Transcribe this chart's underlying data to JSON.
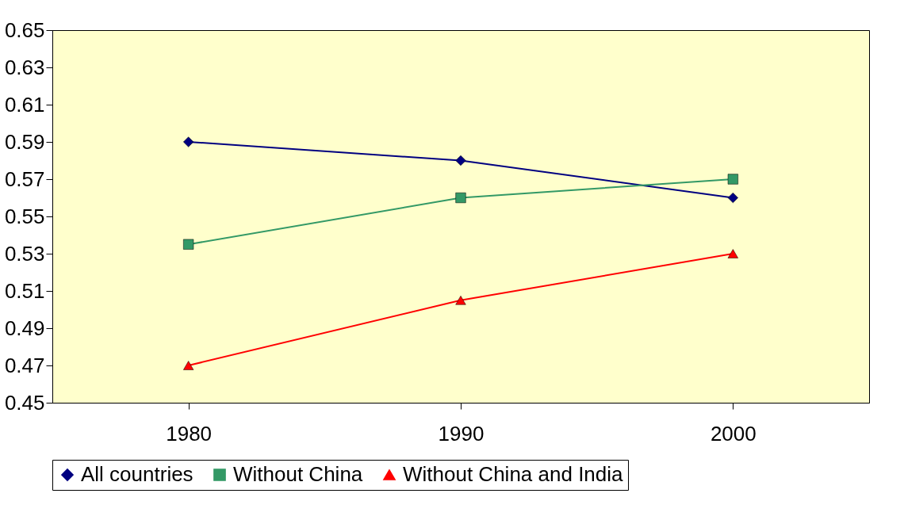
{
  "chart_data": {
    "type": "line",
    "categories": [
      "1980",
      "1990",
      "2000"
    ],
    "series": [
      {
        "name": "All countries",
        "color": "#000080",
        "marker": "diamond",
        "values": [
          0.59,
          0.58,
          0.56
        ]
      },
      {
        "name": "Without China",
        "color": "#339966",
        "marker": "square",
        "values": [
          0.535,
          0.56,
          0.57
        ]
      },
      {
        "name": "Without China and India",
        "color": "#ff0000",
        "marker": "triangle",
        "values": [
          0.47,
          0.505,
          0.53
        ]
      }
    ],
    "ylim": [
      0.45,
      0.65
    ],
    "yticks": [
      0.45,
      0.47,
      0.49,
      0.51,
      0.53,
      0.55,
      0.57,
      0.59,
      0.61,
      0.63,
      0.65
    ],
    "grid": false,
    "legend": "bottom",
    "line_style": "solid"
  }
}
